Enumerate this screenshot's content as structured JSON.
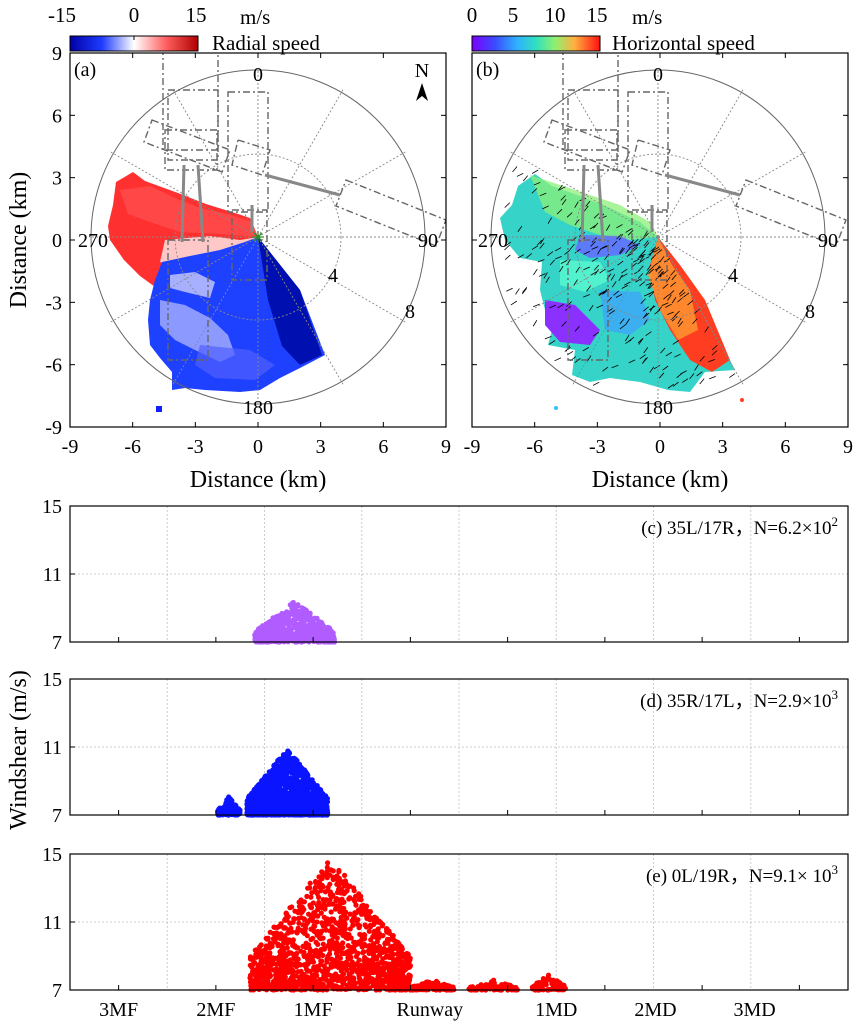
{
  "chart_data": [
    {
      "id": "a",
      "type": "heatmap",
      "panel_label": "(a)",
      "description": "PPI radar radial velocity scan",
      "colorbar": {
        "label": "Radial speed",
        "unit": "m/s",
        "ticks": [
          "-15",
          "0",
          "15"
        ],
        "range": [
          -15,
          15
        ]
      },
      "xlabel": "Distance (km)",
      "ylabel": "Distance (km)",
      "xlim": [
        -9,
        9
      ],
      "ylim": [
        -9,
        9
      ],
      "xticks": [
        "-9",
        "-6",
        "-3",
        "0",
        "3",
        "6",
        "9"
      ],
      "yticks": [
        "9",
        "6",
        "3",
        "0",
        "-3",
        "-6",
        "-9"
      ],
      "range_rings_km": [
        4,
        8
      ],
      "ring_labels": [
        "4",
        "8"
      ],
      "azimuth_labels": [
        "0",
        "90",
        "180",
        "270"
      ],
      "north_arrow": "N",
      "sector_deg": [
        145,
        300
      ]
    },
    {
      "id": "b",
      "type": "heatmap",
      "panel_label": "(b)",
      "description": "Retrieved horizontal wind speed with wind vectors",
      "colorbar": {
        "label": "Horizontal speed",
        "unit": "m/s",
        "ticks": [
          "0",
          "5",
          "10",
          "15"
        ],
        "range": [
          0,
          15
        ]
      },
      "xlabel": "Distance (km)",
      "xlim": [
        -9,
        9
      ],
      "ylim": [
        -9,
        9
      ],
      "xticks": [
        "-9",
        "-6",
        "-3",
        "0",
        "3",
        "6",
        "9"
      ],
      "range_rings_km": [
        4,
        8
      ],
      "ring_labels": [
        "4",
        "8"
      ],
      "azimuth_labels": [
        "0",
        "90",
        "180",
        "270"
      ],
      "sector_deg": [
        145,
        300
      ]
    },
    {
      "id": "c",
      "type": "scatter",
      "annotation": "(c) 35L/17R，N=6.2×10",
      "annotation_exp": "2",
      "color": "#b05cff",
      "ylim": [
        7,
        15
      ],
      "yticks": [
        "15",
        "11",
        "7"
      ],
      "clusters": [
        {
          "x_range": [
            1.9,
            2.72
          ],
          "y_range": [
            7.0,
            9.5
          ],
          "peak_y": 9.4,
          "n": 620
        }
      ]
    },
    {
      "id": "d",
      "type": "scatter",
      "annotation": "(d) 35R/17L，N=2.9×10",
      "annotation_exp": "3",
      "color": "#0a14ff",
      "ylim": [
        7,
        15
      ],
      "yticks": [
        "15",
        "11",
        "7"
      ],
      "clusters": [
        {
          "x_range": [
            1.52,
            1.75
          ],
          "y_range": [
            7.0,
            8.1
          ],
          "peak_y": 8.1,
          "n": 120
        },
        {
          "x_range": [
            1.82,
            2.65
          ],
          "y_range": [
            7.0,
            11.0
          ],
          "peak_y": 10.9,
          "n": 2780
        }
      ]
    },
    {
      "id": "e",
      "type": "scatter",
      "annotation": "(e) 0L/19R，N=9.1× 10",
      "annotation_exp": "3",
      "color": "#ff0000",
      "ylim": [
        7,
        15
      ],
      "yticks": [
        "15",
        "11",
        "7"
      ],
      "clusters": [
        {
          "x_range": [
            1.85,
            3.5
          ],
          "y_range": [
            7.0,
            14.8
          ],
          "peak_y": 14.8,
          "n": 8800
        },
        {
          "x_range": [
            3.5,
            3.95
          ],
          "y_range": [
            7.0,
            7.7
          ],
          "peak_y": 7.6,
          "n": 120
        },
        {
          "x_range": [
            4.1,
            4.6
          ],
          "y_range": [
            7.0,
            7.7
          ],
          "peak_y": 7.6,
          "n": 90
        },
        {
          "x_range": [
            4.75,
            5.1
          ],
          "y_range": [
            7.0,
            7.9
          ],
          "peak_y": 7.9,
          "n": 90
        }
      ]
    }
  ],
  "shared": {
    "ylabel": "Windshear (m/s)",
    "xcategories": [
      "3MF",
      "2MF",
      "1MF",
      "Runway",
      "1MD",
      "2MD",
      "3MD"
    ]
  }
}
